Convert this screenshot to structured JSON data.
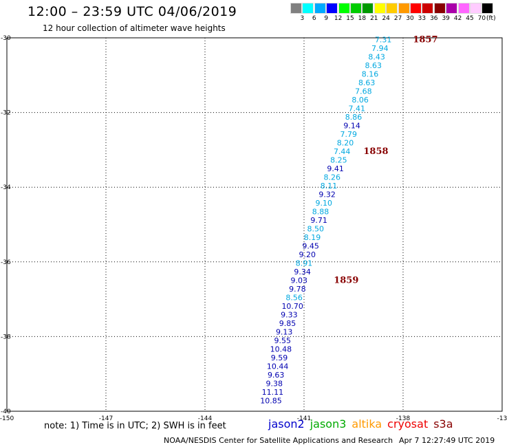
{
  "header": {
    "title": "12:00 – 23:59 UTC 04/06/2019",
    "subtitle": "12 hour collection of altimeter wave heights"
  },
  "legend": {
    "unit_label": "(ft)",
    "bins": [
      {
        "label": "3",
        "color": "#808080"
      },
      {
        "label": "6",
        "color": "#00ffff"
      },
      {
        "label": "9",
        "color": "#00aaff"
      },
      {
        "label": "12",
        "color": "#0000ff"
      },
      {
        "label": "15",
        "color": "#00ff00"
      },
      {
        "label": "18",
        "color": "#00cc00"
      },
      {
        "label": "21",
        "color": "#009900"
      },
      {
        "label": "24",
        "color": "#ffff00"
      },
      {
        "label": "27",
        "color": "#ffcc00"
      },
      {
        "label": "30",
        "color": "#ff9900"
      },
      {
        "label": "33",
        "color": "#ff0000"
      },
      {
        "label": "36",
        "color": "#cc0000"
      },
      {
        "label": "39",
        "color": "#880000"
      },
      {
        "label": "42",
        "color": "#aa00aa"
      },
      {
        "label": "45",
        "color": "#ff66ff"
      },
      {
        "label": "70",
        "color": "#ffccff"
      },
      {
        "label": "",
        "color": "#000000"
      }
    ]
  },
  "chart_data": {
    "type": "scatter",
    "xlim": [
      -150,
      -135
    ],
    "ylim": [
      -40,
      -30
    ],
    "x_ticks": [
      -147,
      -144,
      -141,
      -138
    ],
    "x_tick_labels": [
      "-147",
      "-144",
      "-141",
      "-138"
    ],
    "x_edge_labels": [
      "-150",
      "-13"
    ],
    "y_ticks": [
      -30,
      -32,
      -34,
      -36,
      -38,
      -40
    ],
    "y_tick_labels": [
      "-30",
      "-32",
      "-34",
      "-36",
      "-38",
      "-40"
    ],
    "grid": true,
    "colors": {
      "light": "#00a8e0",
      "dark": "#0000b0",
      "time": "#880000"
    },
    "points": [
      {
        "lon": -138.6,
        "lat": -30.05,
        "value": "7.31",
        "band": "light"
      },
      {
        "lon": -138.7,
        "lat": -30.28,
        "value": "7.94",
        "band": "light"
      },
      {
        "lon": -138.8,
        "lat": -30.51,
        "value": "8.43",
        "band": "light"
      },
      {
        "lon": -138.9,
        "lat": -30.74,
        "value": "8.63",
        "band": "light"
      },
      {
        "lon": -139.0,
        "lat": -30.97,
        "value": "8.16",
        "band": "light"
      },
      {
        "lon": -139.1,
        "lat": -31.2,
        "value": "8.63",
        "band": "light"
      },
      {
        "lon": -139.2,
        "lat": -31.43,
        "value": "7.68",
        "band": "light"
      },
      {
        "lon": -139.3,
        "lat": -31.66,
        "value": "8.06",
        "band": "light"
      },
      {
        "lon": -139.4,
        "lat": -31.89,
        "value": "7.41",
        "band": "light"
      },
      {
        "lon": -139.5,
        "lat": -32.12,
        "value": "8.86",
        "band": "light"
      },
      {
        "lon": -139.55,
        "lat": -32.35,
        "value": "9.14",
        "band": "dark"
      },
      {
        "lon": -139.65,
        "lat": -32.58,
        "value": "7.79",
        "band": "light"
      },
      {
        "lon": -139.75,
        "lat": -32.81,
        "value": "8.20",
        "band": "light"
      },
      {
        "lon": -139.85,
        "lat": -33.04,
        "value": "7.44",
        "band": "light"
      },
      {
        "lon": -139.95,
        "lat": -33.27,
        "value": "8.25",
        "band": "light"
      },
      {
        "lon": -140.05,
        "lat": -33.5,
        "value": "9.41",
        "band": "dark"
      },
      {
        "lon": -140.15,
        "lat": -33.73,
        "value": "8.26",
        "band": "light"
      },
      {
        "lon": -140.25,
        "lat": -33.96,
        "value": "8.11",
        "band": "light"
      },
      {
        "lon": -140.3,
        "lat": -34.19,
        "value": "9.32",
        "band": "dark"
      },
      {
        "lon": -140.4,
        "lat": -34.42,
        "value": "9.10",
        "band": "light"
      },
      {
        "lon": -140.5,
        "lat": -34.65,
        "value": "8.88",
        "band": "light"
      },
      {
        "lon": -140.55,
        "lat": -34.88,
        "value": "9.71",
        "band": "dark"
      },
      {
        "lon": -140.65,
        "lat": -35.11,
        "value": "8.50",
        "band": "light"
      },
      {
        "lon": -140.75,
        "lat": -35.34,
        "value": "8.19",
        "band": "light"
      },
      {
        "lon": -140.8,
        "lat": -35.57,
        "value": "9.45",
        "band": "dark"
      },
      {
        "lon": -140.9,
        "lat": -35.8,
        "value": "9.20",
        "band": "dark"
      },
      {
        "lon": -141.0,
        "lat": -36.03,
        "value": "8.91",
        "band": "light"
      },
      {
        "lon": -141.05,
        "lat": -36.26,
        "value": "9.34",
        "band": "dark"
      },
      {
        "lon": -141.15,
        "lat": -36.49,
        "value": "9.03",
        "band": "dark"
      },
      {
        "lon": -141.2,
        "lat": -36.72,
        "value": "9.78",
        "band": "dark"
      },
      {
        "lon": -141.3,
        "lat": -36.95,
        "value": "8.56",
        "band": "light"
      },
      {
        "lon": -141.35,
        "lat": -37.18,
        "value": "10.70",
        "band": "dark"
      },
      {
        "lon": -141.45,
        "lat": -37.41,
        "value": "9.33",
        "band": "dark"
      },
      {
        "lon": -141.5,
        "lat": -37.64,
        "value": "9.85",
        "band": "dark"
      },
      {
        "lon": -141.6,
        "lat": -37.87,
        "value": "9.13",
        "band": "dark"
      },
      {
        "lon": -141.65,
        "lat": -38.1,
        "value": "9.55",
        "band": "dark"
      },
      {
        "lon": -141.7,
        "lat": -38.33,
        "value": "10.48",
        "band": "dark"
      },
      {
        "lon": -141.75,
        "lat": -38.56,
        "value": "9.59",
        "band": "dark"
      },
      {
        "lon": -141.8,
        "lat": -38.79,
        "value": "10.44",
        "band": "dark"
      },
      {
        "lon": -141.85,
        "lat": -39.02,
        "value": "9.63",
        "band": "dark"
      },
      {
        "lon": -141.9,
        "lat": -39.25,
        "value": "9.38",
        "band": "dark"
      },
      {
        "lon": -141.95,
        "lat": -39.48,
        "value": "11.11",
        "band": "dark"
      },
      {
        "lon": -142.0,
        "lat": -39.71,
        "value": "10.85",
        "band": "dark"
      }
    ],
    "time_labels": [
      {
        "lon": -137.7,
        "lat": -30.05,
        "text": "1857"
      },
      {
        "lon": -139.2,
        "lat": -33.04,
        "text": "1858"
      },
      {
        "lon": -140.1,
        "lat": -36.49,
        "text": "1859"
      }
    ]
  },
  "footer": {
    "note": "note: 1) Time is in UTC; 2) SWH is in feet",
    "satellites": [
      {
        "name": "jason2",
        "color": "#0000cc"
      },
      {
        "name": "jason3",
        "color": "#00aa00"
      },
      {
        "name": "altika",
        "color": "#ff9900"
      },
      {
        "name": "cryosat",
        "color": "#ee0000"
      },
      {
        "name": "s3a",
        "color": "#880000"
      }
    ],
    "credit": "NOAA/NESDIS Center for Satellite Applications and Research",
    "timestamp": "Apr  7 12:27:49 UTC 2019"
  }
}
